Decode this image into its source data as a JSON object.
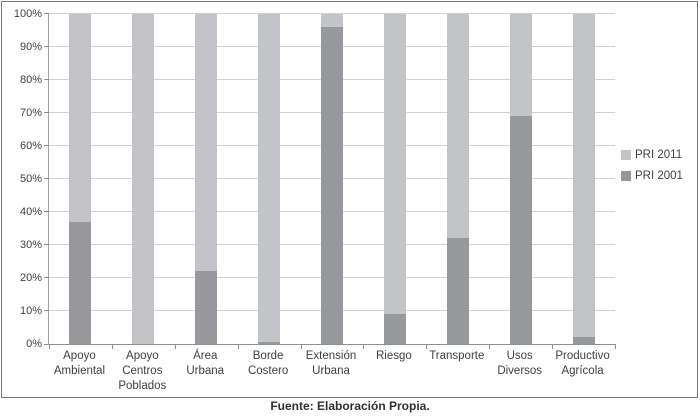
{
  "chart_data": {
    "type": "bar",
    "subtype": "stacked-100-percent",
    "title": "",
    "xlabel": "",
    "ylabel": "",
    "ylim": [
      0,
      100
    ],
    "grid": true,
    "legend_position": "right",
    "categories": [
      "Apoyo Ambiental",
      "Apoyo Centros Poblados",
      "Área Urbana",
      "Borde Costero",
      "Extensión Urbana",
      "Riesgo",
      "Transporte",
      "Usos Diversos",
      "Productivo Agrícola"
    ],
    "series": [
      {
        "name": "PRI 2001",
        "color": "#97989c",
        "stack_order": "bottom",
        "values": [
          37,
          0,
          22,
          0.5,
          96,
          9,
          32,
          69,
          2
        ]
      },
      {
        "name": "PRI 2011",
        "color": "#c3c4c8",
        "stack_order": "top",
        "values": [
          63,
          100,
          78,
          99.5,
          4,
          91,
          68,
          31,
          98
        ]
      }
    ],
    "yticks": [
      "0%",
      "10%",
      "20%",
      "30%",
      "40%",
      "50%",
      "60%",
      "70%",
      "80%",
      "90%",
      "100%"
    ],
    "legend": [
      {
        "label": "PRI 2011",
        "color": "#c3c4c8"
      },
      {
        "label": "PRI 2001",
        "color": "#97989c"
      }
    ]
  },
  "footer": {
    "source_label": "Fuente: Elaboración Propia."
  },
  "colors": {
    "bar_light": "#c3c4c8",
    "bar_dark": "#97989c",
    "gridline": "#d2d2d2",
    "axis": "#8f8f8f",
    "text": "#3f3f3f",
    "frame_border": "#777777",
    "background": "#ffffff"
  }
}
